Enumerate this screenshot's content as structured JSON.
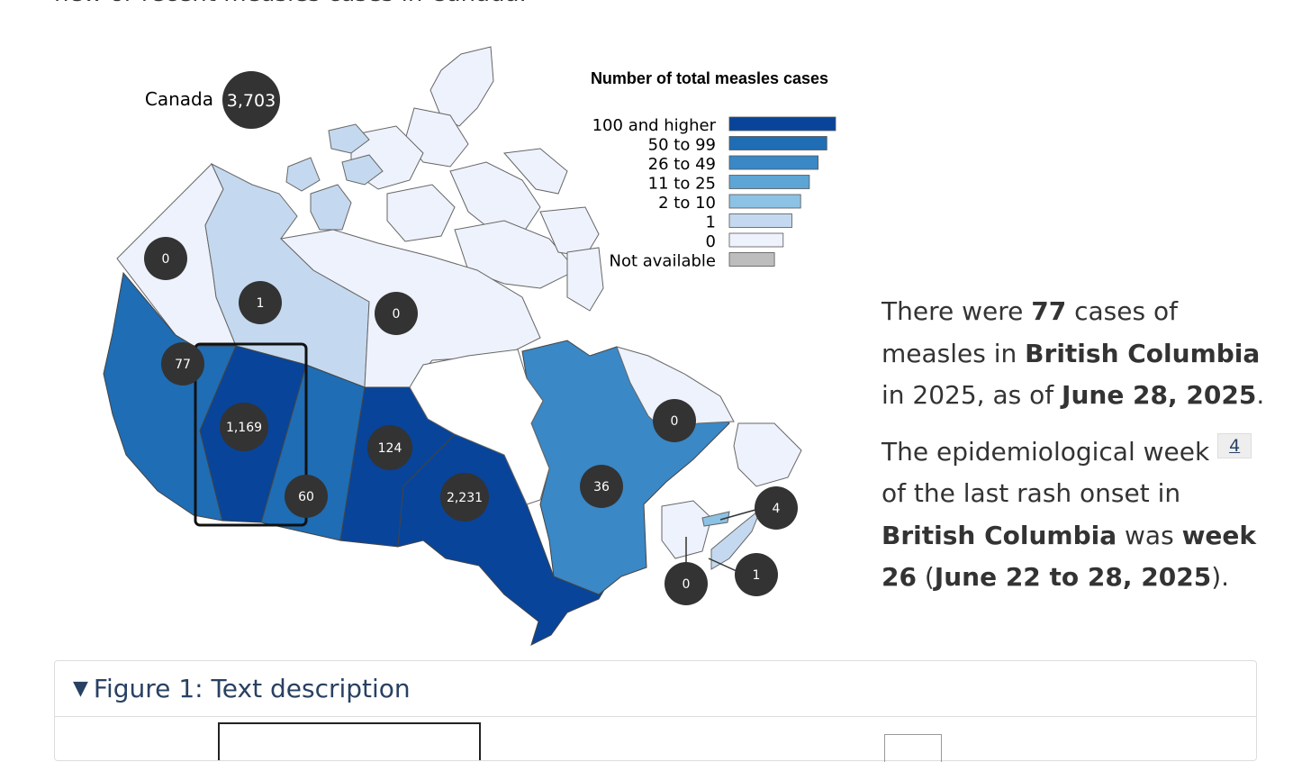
{
  "intro_text": "new or recent measles cases in Canada.",
  "map": {
    "national_label": "Canada",
    "national_value": "3,703",
    "bubbles": [
      {
        "id": "yt",
        "value": "0"
      },
      {
        "id": "nt",
        "value": "1"
      },
      {
        "id": "nu",
        "value": "0"
      },
      {
        "id": "bc",
        "value": "77"
      },
      {
        "id": "ab",
        "value": "1,169"
      },
      {
        "id": "sk",
        "value": "60"
      },
      {
        "id": "mb",
        "value": "124"
      },
      {
        "id": "on",
        "value": "2,231"
      },
      {
        "id": "qc",
        "value": "36"
      },
      {
        "id": "nl",
        "value": "0"
      },
      {
        "id": "ns",
        "value": "4"
      },
      {
        "id": "nb",
        "value": "1"
      },
      {
        "id": "pe",
        "value": "0"
      }
    ]
  },
  "legend": {
    "title": "Number of total measles cases",
    "items": [
      {
        "label": "100 and higher",
        "color": "#08449a"
      },
      {
        "label": "50 to 99",
        "color": "#1f6db4"
      },
      {
        "label": "26 to 49",
        "color": "#3a88c6"
      },
      {
        "label": "11 to 25",
        "color": "#5da5d4"
      },
      {
        "label": "2 to 10",
        "color": "#8cc2e4"
      },
      {
        "label": "1",
        "color": "#c4d9ef"
      },
      {
        "label": "0",
        "color": "#eef2fc"
      },
      {
        "label": "Not available",
        "color": "#bdbdbd"
      }
    ]
  },
  "summary": {
    "line1_pre": "There were ",
    "cases": "77",
    "line1_mid": " cases of measles in ",
    "province": "British Columbia",
    "line1_post": " in 2025, as of ",
    "as_of_date": "June 28, 2025",
    "line1_end": ".",
    "line2_pre": "The epidemiological week ",
    "footnote": "4",
    "line2_mid": " of the last rash onset in ",
    "line2_mid2": " was ",
    "week": "week 26",
    "line2_paren_open": " (",
    "week_range": "June 22 to 28, 2025",
    "line2_end": ")."
  },
  "details": {
    "toggle_icon": "triangle-down-icon",
    "title": "Figure 1: Text description"
  }
}
